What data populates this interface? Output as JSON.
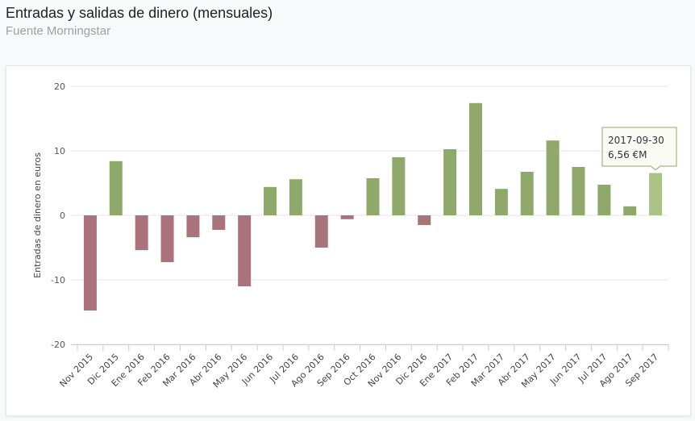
{
  "header": {
    "title": "Entradas y salidas de dinero (mensuales)",
    "subtitle": "Fuente Morningstar"
  },
  "chart_data": {
    "type": "bar",
    "title": "Entradas y salidas de dinero (mensuales)",
    "subtitle": "Fuente Morningstar",
    "xlabel": "",
    "ylabel": "Entradas de dinero en euros",
    "ylim": [
      -20,
      20
    ],
    "yticks": [
      20,
      10,
      0,
      -10,
      -20
    ],
    "grid": true,
    "categories": [
      "Nov 2015",
      "Dic 2015",
      "Ene 2016",
      "Feb 2016",
      "Mar 2016",
      "Abr 2016",
      "May 2016",
      "Jun 2016",
      "Jul 2016",
      "Ago 2016",
      "Sep 2016",
      "Oct 2016",
      "Nov 2016",
      "Dic 2016",
      "Ene 2017",
      "Feb 2017",
      "Mar 2017",
      "Abr 2017",
      "May 2017",
      "Jun 2017",
      "Jul 2017",
      "Ago 2017",
      "Sep 2017"
    ],
    "values": [
      -14.75,
      8.4,
      -5.4,
      -7.25,
      -3.4,
      -2.25,
      -11,
      4.4,
      5.6,
      -5,
      -0.6,
      5.75,
      9,
      -1.5,
      10.25,
      17.4,
      4.1,
      6.75,
      11.6,
      7.5,
      4.75,
      1.4,
      6.56
    ],
    "colors": {
      "positive": "#8fa96b",
      "negative": "#a8747a",
      "highlight": "#a9c485"
    },
    "tooltip": {
      "date": "2017-09-30",
      "value": "6,56 €M",
      "index": 22
    }
  }
}
